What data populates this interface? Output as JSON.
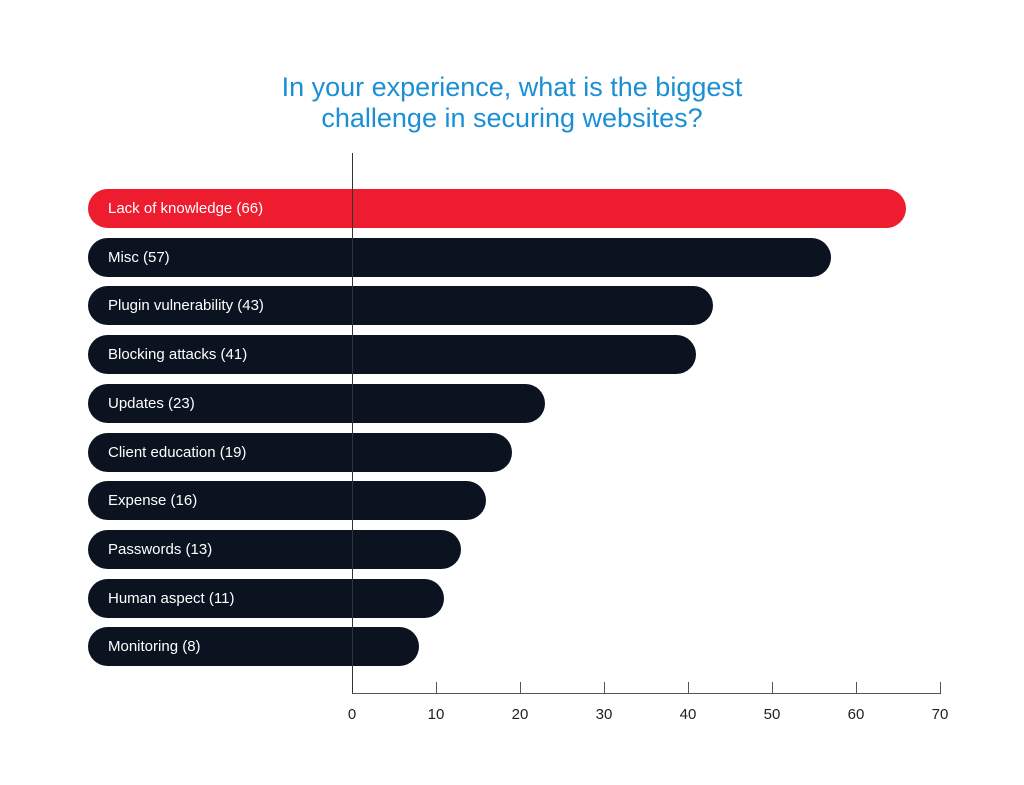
{
  "chart_data": {
    "type": "bar",
    "orientation": "horizontal",
    "title": "In your experience, what is the biggest challenge in securing websites?",
    "title_lines": [
      "In your experience, what is the biggest",
      "challenge in securing websites?"
    ],
    "categories": [
      "Lack of knowledge",
      "Misc",
      "Plugin vulnerability",
      "Blocking attacks",
      "Updates",
      "Client education",
      "Expense",
      "Passwords",
      "Human aspect",
      "Monitoring"
    ],
    "values": [
      66,
      57,
      43,
      41,
      23,
      19,
      16,
      13,
      11,
      8
    ],
    "bar_labels": [
      "Lack of knowledge (66)",
      "Misc (57)",
      "Plugin vulnerability (43)",
      "Blocking attacks (41)",
      "Updates (23)",
      "Client education (19)",
      "Expense (16)",
      "Passwords (13)",
      "Human aspect (11)",
      "Monitoring (8)"
    ],
    "highlight_index": 0,
    "xlabel": "",
    "ylabel": "",
    "xlim": [
      0,
      70
    ],
    "xticks": [
      "0",
      "10",
      "20",
      "30",
      "40",
      "50",
      "60",
      "70"
    ],
    "grid": false,
    "legend": null,
    "colors": {
      "highlight": "#ED1C2E",
      "default": "#0B1220",
      "title": "#1B8FD6"
    }
  }
}
